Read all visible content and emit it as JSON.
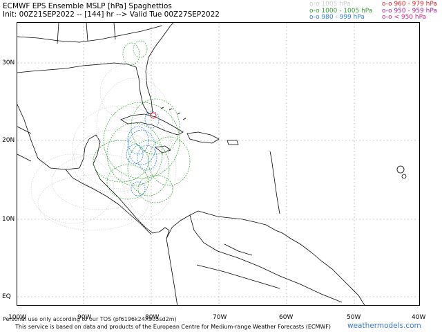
{
  "title": {
    "line1": "ECMWF EPS Ensemble MSLP [hPa] Spaghettios",
    "line2": "Init: 00Z21SEP2022 -- [144] hr --> Valid Tue 00Z27SEP2022"
  },
  "legend": {
    "left": [
      {
        "label": "o-o 1005 hPa",
        "color": "#cccccc"
      },
      {
        "label": "o-o 1000 - 1005 hPa",
        "color": "#2ea02e"
      },
      {
        "label": "o-o 980 - 999 hPa",
        "color": "#2a7fd4"
      }
    ],
    "right": [
      {
        "label": "o-o 960 - 979 hPa",
        "color": "#e02020"
      },
      {
        "label": "o-o 950 - 959 hPa",
        "color": "#a020a0"
      },
      {
        "label": "o-o < 950 hPa",
        "color": "#d0208a"
      }
    ]
  },
  "map": {
    "lat_labels": [
      "30N",
      "20N",
      "10N",
      "EQ"
    ],
    "lon_labels": [
      "100W",
      "90W",
      "80W",
      "70W",
      "60W",
      "50W",
      "40W"
    ]
  },
  "footer": {
    "notice": "This service is based on data and products of the European Centre for Medium-range Weather Forecasts (ECMWF)",
    "brand": "weathermodels.com",
    "overlay": "Personal use only according to our TOS (pf6196k24X9o5sd2m)"
  }
}
